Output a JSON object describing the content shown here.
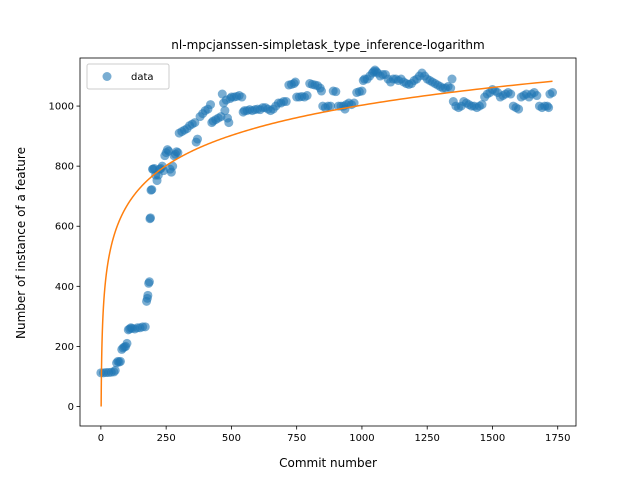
{
  "chart_data": {
    "type": "scatter",
    "title": "nl-mpcjanssen-simpletask_type_inference-logarithm",
    "xlabel": "Commit number",
    "ylabel": "Number of instance of a feature",
    "xlim": [
      -80,
      1820
    ],
    "ylim": [
      -65,
      1160
    ],
    "xticks": [
      0,
      250,
      500,
      750,
      1000,
      1250,
      1500,
      1750
    ],
    "yticks": [
      0,
      200,
      400,
      600,
      800,
      1000
    ],
    "grid": false,
    "legend": {
      "placement": "top-left",
      "entries": [
        {
          "label": "data",
          "marker": "circle",
          "color": "#1f77b4"
        }
      ]
    },
    "colors": {
      "data": "#1f77b4",
      "fit": "#ff7f0e"
    },
    "series": [
      {
        "name": "data",
        "kind": "scatter",
        "points": [
          [
            0,
            112
          ],
          [
            10,
            112
          ],
          [
            20,
            113
          ],
          [
            30,
            113
          ],
          [
            40,
            114
          ],
          [
            50,
            115
          ],
          [
            55,
            120
          ],
          [
            60,
            145
          ],
          [
            65,
            150
          ],
          [
            70,
            148
          ],
          [
            75,
            150
          ],
          [
            80,
            190
          ],
          [
            85,
            195
          ],
          [
            90,
            198
          ],
          [
            95,
            200
          ],
          [
            100,
            210
          ],
          [
            105,
            255
          ],
          [
            110,
            258
          ],
          [
            115,
            262
          ],
          [
            120,
            260
          ],
          [
            130,
            258
          ],
          [
            140,
            262
          ],
          [
            150,
            262
          ],
          [
            160,
            265
          ],
          [
            170,
            265
          ],
          [
            175,
            350
          ],
          [
            178,
            360
          ],
          [
            180,
            370
          ],
          [
            183,
            410
          ],
          [
            186,
            415
          ],
          [
            188,
            625
          ],
          [
            190,
            628
          ],
          [
            192,
            720
          ],
          [
            195,
            722
          ],
          [
            198,
            790
          ],
          [
            200,
            790
          ],
          [
            205,
            792
          ],
          [
            210,
            770
          ],
          [
            215,
            752
          ],
          [
            220,
            770
          ],
          [
            225,
            790
          ],
          [
            230,
            792
          ],
          [
            235,
            800
          ],
          [
            240,
            785
          ],
          [
            245,
            835
          ],
          [
            250,
            845
          ],
          [
            255,
            855
          ],
          [
            260,
            850
          ],
          [
            265,
            790
          ],
          [
            270,
            780
          ],
          [
            275,
            800
          ],
          [
            280,
            835
          ],
          [
            285,
            840
          ],
          [
            290,
            848
          ],
          [
            295,
            845
          ],
          [
            300,
            910
          ],
          [
            310,
            915
          ],
          [
            320,
            920
          ],
          [
            330,
            925
          ],
          [
            340,
            935
          ],
          [
            350,
            940
          ],
          [
            360,
            945
          ],
          [
            365,
            880
          ],
          [
            370,
            890
          ],
          [
            380,
            965
          ],
          [
            390,
            975
          ],
          [
            400,
            985
          ],
          [
            410,
            990
          ],
          [
            420,
            1005
          ],
          [
            425,
            945
          ],
          [
            430,
            950
          ],
          [
            440,
            955
          ],
          [
            450,
            960
          ],
          [
            460,
            965
          ],
          [
            465,
            1040
          ],
          [
            470,
            1010
          ],
          [
            475,
            985
          ],
          [
            480,
            1020
          ],
          [
            485,
            960
          ],
          [
            490,
            945
          ],
          [
            495,
            1025
          ],
          [
            500,
            1030
          ],
          [
            510,
            1030
          ],
          [
            520,
            1032
          ],
          [
            530,
            1035
          ],
          [
            540,
            1030
          ],
          [
            545,
            980
          ],
          [
            550,
            985
          ],
          [
            560,
            985
          ],
          [
            570,
            988
          ],
          [
            580,
            985
          ],
          [
            590,
            988
          ],
          [
            600,
            990
          ],
          [
            610,
            988
          ],
          [
            620,
            995
          ],
          [
            630,
            995
          ],
          [
            640,
            990
          ],
          [
            650,
            985
          ],
          [
            660,
            990
          ],
          [
            670,
            1000
          ],
          [
            680,
            1010
          ],
          [
            690,
            1010
          ],
          [
            700,
            1015
          ],
          [
            710,
            1015
          ],
          [
            720,
            1070
          ],
          [
            730,
            1072
          ],
          [
            740,
            1075
          ],
          [
            745,
            1080
          ],
          [
            750,
            1030
          ],
          [
            760,
            1030
          ],
          [
            770,
            1032
          ],
          [
            780,
            1030
          ],
          [
            790,
            1035
          ],
          [
            800,
            1075
          ],
          [
            810,
            1072
          ],
          [
            820,
            1070
          ],
          [
            830,
            1068
          ],
          [
            840,
            1060
          ],
          [
            845,
            1050
          ],
          [
            850,
            1000
          ],
          [
            860,
            995
          ],
          [
            870,
            1000
          ],
          [
            880,
            1000
          ],
          [
            890,
            1050
          ],
          [
            900,
            1048
          ],
          [
            910,
            1000
          ],
          [
            920,
            1000
          ],
          [
            930,
            1000
          ],
          [
            935,
            990
          ],
          [
            940,
            1005
          ],
          [
            950,
            1010
          ],
          [
            960,
            1005
          ],
          [
            970,
            1010
          ],
          [
            980,
            1045
          ],
          [
            990,
            1048
          ],
          [
            1000,
            1050
          ],
          [
            1005,
            1085
          ],
          [
            1010,
            1090
          ],
          [
            1020,
            1090
          ],
          [
            1030,
            1100
          ],
          [
            1040,
            1110
          ],
          [
            1045,
            1115
          ],
          [
            1050,
            1120
          ],
          [
            1055,
            1115
          ],
          [
            1060,
            1110
          ],
          [
            1070,
            1100
          ],
          [
            1080,
            1105
          ],
          [
            1090,
            1105
          ],
          [
            1100,
            1090
          ],
          [
            1110,
            1080
          ],
          [
            1120,
            1090
          ],
          [
            1130,
            1090
          ],
          [
            1140,
            1085
          ],
          [
            1150,
            1090
          ],
          [
            1160,
            1080
          ],
          [
            1170,
            1075
          ],
          [
            1180,
            1072
          ],
          [
            1190,
            1075
          ],
          [
            1200,
            1085
          ],
          [
            1210,
            1090
          ],
          [
            1220,
            1100
          ],
          [
            1230,
            1110
          ],
          [
            1240,
            1100
          ],
          [
            1250,
            1090
          ],
          [
            1260,
            1085
          ],
          [
            1270,
            1080
          ],
          [
            1280,
            1075
          ],
          [
            1290,
            1070
          ],
          [
            1300,
            1065
          ],
          [
            1310,
            1060
          ],
          [
            1320,
            1060
          ],
          [
            1330,
            1065
          ],
          [
            1340,
            1060
          ],
          [
            1345,
            1090
          ],
          [
            1350,
            1015
          ],
          [
            1360,
            1000
          ],
          [
            1370,
            995
          ],
          [
            1380,
            1000
          ],
          [
            1390,
            1015
          ],
          [
            1400,
            1010
          ],
          [
            1410,
            1005
          ],
          [
            1420,
            1000
          ],
          [
            1430,
            1000
          ],
          [
            1440,
            995
          ],
          [
            1450,
            1000
          ],
          [
            1460,
            1005
          ],
          [
            1470,
            1030
          ],
          [
            1480,
            1040
          ],
          [
            1490,
            1045
          ],
          [
            1500,
            1055
          ],
          [
            1510,
            1050
          ],
          [
            1520,
            1045
          ],
          [
            1530,
            1030
          ],
          [
            1540,
            1035
          ],
          [
            1550,
            1040
          ],
          [
            1560,
            1045
          ],
          [
            1570,
            1040
          ],
          [
            1580,
            1000
          ],
          [
            1590,
            995
          ],
          [
            1600,
            990
          ],
          [
            1610,
            1030
          ],
          [
            1620,
            1035
          ],
          [
            1630,
            1040
          ],
          [
            1640,
            1030
          ],
          [
            1650,
            1040
          ],
          [
            1660,
            1045
          ],
          [
            1670,
            1035
          ],
          [
            1680,
            1000
          ],
          [
            1690,
            995
          ],
          [
            1700,
            1000
          ],
          [
            1710,
            1000
          ],
          [
            1715,
            995
          ],
          [
            1720,
            1040
          ],
          [
            1730,
            1045
          ]
        ]
      },
      {
        "kind": "line",
        "model": {
          "form": "a + b*ln(x)",
          "a": 0,
          "b": 145.2
        },
        "x_range": [
          1,
          1730
        ]
      }
    ]
  }
}
